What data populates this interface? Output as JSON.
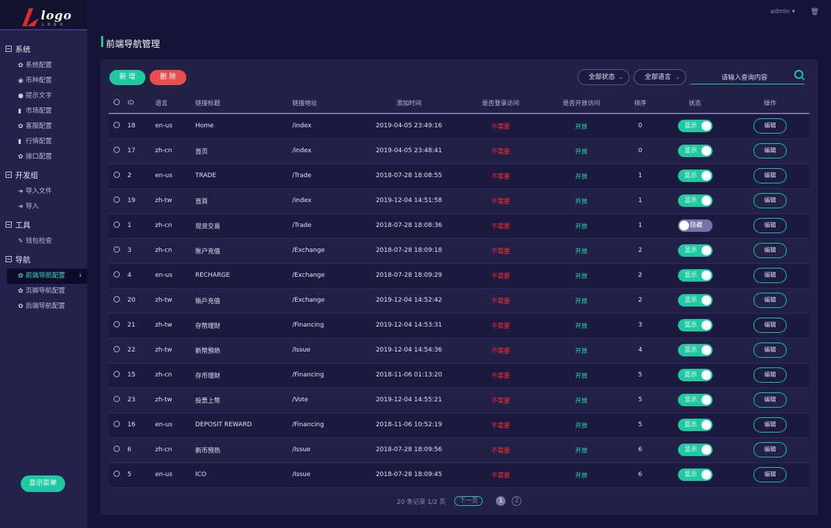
{
  "logo": {
    "text": "logo",
    "sub": "LOGO"
  },
  "sidebar": {
    "groups": [
      {
        "label": "系统",
        "items": [
          {
            "label": "系统配置",
            "icon": "gear-icon"
          },
          {
            "label": "币种配置",
            "icon": "target-icon"
          },
          {
            "label": "提示文字",
            "icon": "info-icon"
          },
          {
            "label": "市场配置",
            "icon": "bar-chart-icon"
          },
          {
            "label": "客服配置",
            "icon": "gear-icon"
          },
          {
            "label": "行情配置",
            "icon": "bar-chart-icon"
          },
          {
            "label": "接口配置",
            "icon": "gear-icon"
          }
        ]
      },
      {
        "label": "开发组",
        "items": [
          {
            "label": "导入文件",
            "icon": "import-icon"
          },
          {
            "label": "导入",
            "icon": "import-icon"
          }
        ]
      },
      {
        "label": "工具",
        "items": [
          {
            "label": "钱包检查",
            "icon": "wrench-icon"
          }
        ]
      },
      {
        "label": "导航",
        "items": [
          {
            "label": "前端导航配置",
            "icon": "gear-icon"
          },
          {
            "label": "页脚导航配置",
            "icon": "gear-icon"
          },
          {
            "label": "后端导航配置",
            "icon": "gear-icon"
          }
        ]
      }
    ],
    "show_menu": "显示菜单"
  },
  "topbar": {
    "user": "admin",
    "user_caret": "▾",
    "trash_icon": "trash-icon"
  },
  "page": {
    "title": "前端导航管理"
  },
  "toolbar": {
    "add": "新 增",
    "delete": "删 除",
    "status_filter": "全部状态",
    "lang_filter": "全部语言",
    "search_placeholder": "请输入查询内容"
  },
  "table": {
    "headers": [
      "ID",
      "语言",
      "链接标题",
      "链接地址",
      "添加时间",
      "是否登录访问",
      "是否开放访问",
      "排序",
      "状态",
      "操作"
    ],
    "rows": [
      {
        "id": "18",
        "lang": "en-us",
        "title": "Home",
        "url": "/index",
        "time": "2019-04-05 23:49:16",
        "login": "不需要",
        "open": "开放",
        "sort": "0",
        "status": "显示",
        "on": true,
        "action": "编辑"
      },
      {
        "id": "17",
        "lang": "zh-cn",
        "title": "首页",
        "url": "/index",
        "time": "2019-04-05 23:48:41",
        "login": "不需要",
        "open": "开放",
        "sort": "0",
        "status": "显示",
        "on": true,
        "action": "编辑"
      },
      {
        "id": "2",
        "lang": "en-us",
        "title": "TRADE",
        "url": "/Trade",
        "time": "2018-07-28 18:08:55",
        "login": "不需要",
        "open": "开放",
        "sort": "1",
        "status": "显示",
        "on": true,
        "action": "编辑"
      },
      {
        "id": "19",
        "lang": "zh-tw",
        "title": "首頁",
        "url": "/index",
        "time": "2019-12-04 14:51:58",
        "login": "不需要",
        "open": "开放",
        "sort": "1",
        "status": "显示",
        "on": true,
        "action": "编辑"
      },
      {
        "id": "1",
        "lang": "zh-cn",
        "title": "现货交易",
        "url": "/Trade",
        "time": "2018-07-28 18:08:36",
        "login": "不需要",
        "open": "开放",
        "sort": "1",
        "status": "隐藏",
        "on": false,
        "action": "编辑"
      },
      {
        "id": "3",
        "lang": "zh-cn",
        "title": "账户充值",
        "url": "/Exchange",
        "time": "2018-07-28 18:09:18",
        "login": "不需要",
        "open": "开放",
        "sort": "2",
        "status": "显示",
        "on": true,
        "action": "编辑"
      },
      {
        "id": "4",
        "lang": "en-us",
        "title": "RECHARGE",
        "url": "/Exchange",
        "time": "2018-07-28 18:09:29",
        "login": "不需要",
        "open": "开放",
        "sort": "2",
        "status": "显示",
        "on": true,
        "action": "编辑"
      },
      {
        "id": "20",
        "lang": "zh-tw",
        "title": "賬戶充值",
        "url": "/Exchange",
        "time": "2019-12-04 14:52:42",
        "login": "不需要",
        "open": "开放",
        "sort": "2",
        "status": "显示",
        "on": true,
        "action": "编辑"
      },
      {
        "id": "21",
        "lang": "zh-tw",
        "title": "存幣理財",
        "url": "/Financing",
        "time": "2019-12-04 14:53:31",
        "login": "不需要",
        "open": "开放",
        "sort": "3",
        "status": "显示",
        "on": true,
        "action": "编辑"
      },
      {
        "id": "22",
        "lang": "zh-tw",
        "title": "新幣預熱",
        "url": "/Issue",
        "time": "2019-12-04 14:54:36",
        "login": "不需要",
        "open": "开放",
        "sort": "4",
        "status": "显示",
        "on": true,
        "action": "编辑"
      },
      {
        "id": "15",
        "lang": "zh-cn",
        "title": "存币理财",
        "url": "/Financing",
        "time": "2018-11-06 01:13:20",
        "login": "不需要",
        "open": "开放",
        "sort": "5",
        "status": "显示",
        "on": true,
        "action": "编辑"
      },
      {
        "id": "23",
        "lang": "zh-tw",
        "title": "投票上幣",
        "url": "/Vote",
        "time": "2019-12-04 14:55:21",
        "login": "不需要",
        "open": "开放",
        "sort": "5",
        "status": "显示",
        "on": true,
        "action": "编辑"
      },
      {
        "id": "16",
        "lang": "en-us",
        "title": "DEPOSIT REWARD",
        "url": "/Financing",
        "time": "2018-11-06 10:52:19",
        "login": "不需要",
        "open": "开放",
        "sort": "5",
        "status": "显示",
        "on": true,
        "action": "编辑"
      },
      {
        "id": "6",
        "lang": "zh-cn",
        "title": "新币预热",
        "url": "/Issue",
        "time": "2018-07-28 18:09:56",
        "login": "不需要",
        "open": "开放",
        "sort": "6",
        "status": "显示",
        "on": true,
        "action": "编辑"
      },
      {
        "id": "5",
        "lang": "en-us",
        "title": "ICO",
        "url": "/Issue",
        "time": "2018-07-28 18:09:45",
        "login": "不需要",
        "open": "开放",
        "sort": "6",
        "status": "显示",
        "on": true,
        "action": "编辑"
      }
    ]
  },
  "pager": {
    "summary": "20 条记录 1/2 页",
    "prev": "下一页",
    "pages": [
      "1",
      "2"
    ],
    "current": "1"
  },
  "colors": {
    "accent": "#21c9a2",
    "danger": "#e94d4d",
    "background": "#151437"
  }
}
